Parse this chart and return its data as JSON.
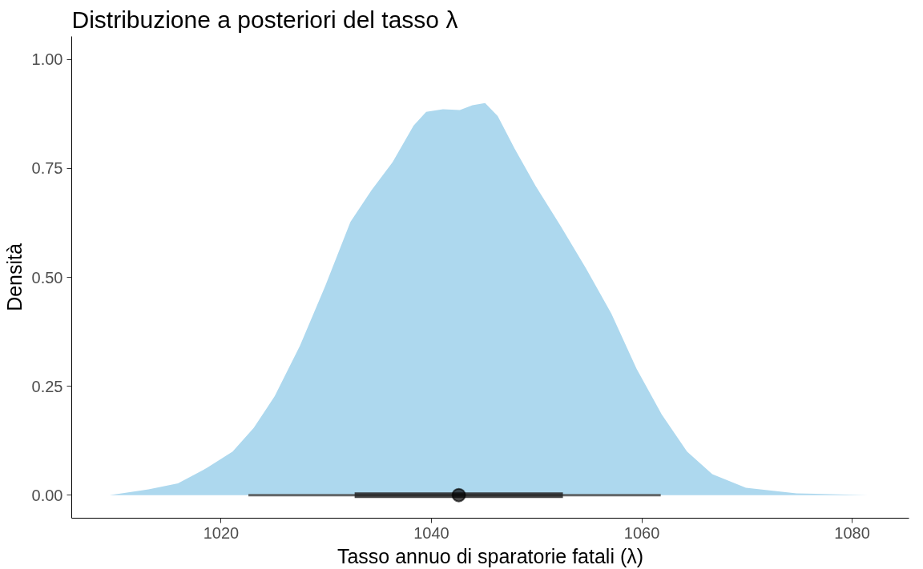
{
  "chart_data": {
    "type": "area",
    "title": "Distribuzione a posteriori del tasso λ",
    "xlabel": "Tasso annuo di sparatorie fatali (λ)",
    "ylabel": "Densità",
    "xlim": [
      1005.8,
      1085.4
    ],
    "ylim": [
      -0.053,
      1.053
    ],
    "xticks": [
      1020,
      1040,
      1060,
      1080
    ],
    "yticks": [
      {
        "value": 0,
        "label": "0.00"
      },
      {
        "value": 0.25,
        "label": "0.25"
      },
      {
        "value": 0.5,
        "label": "0.50"
      },
      {
        "value": 0.75,
        "label": "0.75"
      },
      {
        "value": 1,
        "label": "1.00"
      }
    ],
    "grid": false,
    "series": [
      {
        "color": "#add8ee",
        "x": [
          1009.4,
          1013.1,
          1015.9,
          1018.7,
          1021.1,
          1023.1,
          1025.1,
          1027.5,
          1029.9,
          1032.3,
          1034.3,
          1036.3,
          1038.3,
          1039.5,
          1041.1,
          1042.7,
          1043.9,
          1045.1,
          1046.3,
          1047.9,
          1049.9,
          1052.3,
          1054.7,
          1057.1,
          1059.5,
          1061.9,
          1064.3,
          1066.7,
          1069.9,
          1074.7,
          1081.5
        ],
        "values": [
          0,
          0.013,
          0.027,
          0.063,
          0.1,
          0.154,
          0.227,
          0.343,
          0.48,
          0.627,
          0.7,
          0.764,
          0.848,
          0.88,
          0.886,
          0.884,
          0.895,
          0.9,
          0.87,
          0.796,
          0.71,
          0.617,
          0.52,
          0.417,
          0.29,
          0.185,
          0.1,
          0.048,
          0.017,
          0.004,
          0
        ]
      },
      {
        "type": "line",
        "color": "#4d4d4d",
        "x": [
          1022.6,
          1061.8
        ],
        "values": [
          0,
          0
        ]
      },
      {
        "type": "line",
        "color": "#262626",
        "x": [
          1032.7,
          1052.5
        ],
        "values": [
          0,
          0
        ]
      },
      {
        "type": "scatter",
        "color": "#000000",
        "marker": "circle",
        "x": [
          1042.6
        ],
        "values": [
          0
        ]
      }
    ]
  }
}
